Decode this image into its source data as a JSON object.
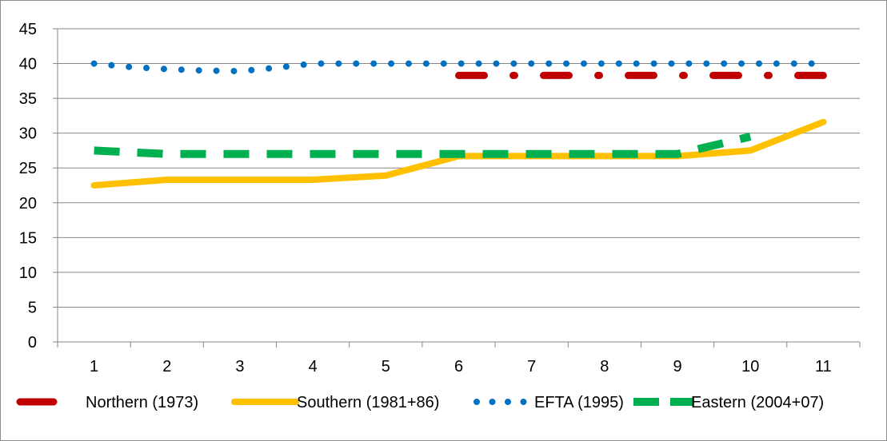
{
  "chart_data": {
    "type": "line",
    "x": [
      1,
      2,
      3,
      4,
      5,
      6,
      7,
      8,
      9,
      10,
      11
    ],
    "ylim": [
      0,
      45
    ],
    "yticks": [
      0,
      5,
      10,
      15,
      20,
      25,
      30,
      35,
      40,
      45
    ],
    "grid": "horizontal",
    "legend_position": "bottom",
    "series": [
      {
        "name": "Northern (1973)",
        "color": "#c00000",
        "style": "long-dash",
        "x": [
          6,
          7,
          8,
          9,
          10,
          11
        ],
        "values": [
          38.3,
          38.3,
          38.3,
          38.3,
          38.3,
          38.3
        ]
      },
      {
        "name": "Southern (1981+86)",
        "color": "#ffc000",
        "style": "solid",
        "x": [
          1,
          2,
          3,
          4,
          5,
          6,
          7,
          8,
          9,
          10,
          11
        ],
        "values": [
          22.5,
          23.3,
          23.3,
          23.3,
          23.9,
          26.7,
          26.7,
          26.7,
          26.7,
          27.5,
          31.6
        ]
      },
      {
        "name": "EFTA (1995)",
        "color": "#0070c0",
        "style": "round-dot",
        "x": [
          1,
          1.5,
          2,
          2.5,
          3,
          3.5,
          4,
          5,
          6,
          7,
          8,
          9,
          10,
          11
        ],
        "values": [
          40.0,
          39.5,
          39.2,
          39.0,
          38.9,
          39.4,
          40.0,
          40.0,
          40.0,
          40.0,
          40.0,
          40.0,
          40.0,
          40.0
        ]
      },
      {
        "name": "Eastern (2004+07)",
        "color": "#00b050",
        "style": "dash",
        "x": [
          1,
          2,
          3,
          4,
          5,
          6,
          7,
          8,
          9,
          10
        ],
        "values": [
          27.5,
          27.0,
          27.0,
          27.0,
          27.0,
          27.0,
          27.0,
          27.0,
          27.0,
          29.5
        ]
      }
    ]
  }
}
